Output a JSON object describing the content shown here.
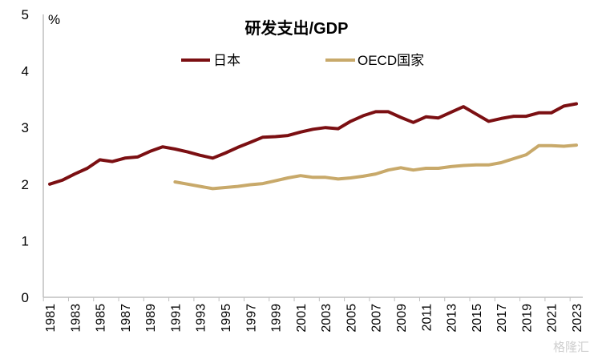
{
  "chart_data": {
    "type": "line",
    "title": "研发支出/GDP",
    "ylabel": "%",
    "xlabel": "",
    "ylim": [
      0,
      5
    ],
    "yticks": [
      "0",
      "1",
      "2",
      "3",
      "4",
      "5"
    ],
    "xlim": [
      1981,
      2023
    ],
    "xticks": [
      "1981",
      "1983",
      "1985",
      "1987",
      "1989",
      "1991",
      "1993",
      "1995",
      "1997",
      "1999",
      "2001",
      "2003",
      "2005",
      "2007",
      "2009",
      "2011",
      "2013",
      "2015",
      "2017",
      "2019",
      "2021",
      "2023"
    ],
    "grid": false,
    "legend_position": "top-center",
    "series": [
      {
        "name": "日本",
        "color": "#7B0F12",
        "x": [
          1981,
          1982,
          1983,
          1984,
          1985,
          1986,
          1987,
          1988,
          1989,
          1990,
          1991,
          1992,
          1993,
          1994,
          1995,
          1996,
          1997,
          1998,
          1999,
          2000,
          2001,
          2002,
          2003,
          2004,
          2005,
          2006,
          2007,
          2008,
          2009,
          2010,
          2011,
          2012,
          2013,
          2014,
          2015,
          2016,
          2017,
          2018,
          2019,
          2020,
          2021,
          2022,
          2023
        ],
        "values": [
          2.0,
          2.07,
          2.18,
          2.28,
          2.43,
          2.4,
          2.46,
          2.48,
          2.58,
          2.66,
          2.62,
          2.57,
          2.51,
          2.46,
          2.55,
          2.65,
          2.74,
          2.83,
          2.84,
          2.86,
          2.92,
          2.97,
          3.0,
          2.98,
          3.11,
          3.21,
          3.28,
          3.28,
          3.18,
          3.09,
          3.19,
          3.17,
          3.27,
          3.37,
          3.24,
          3.11,
          3.16,
          3.2,
          3.2,
          3.26,
          3.26,
          3.38,
          3.42
        ]
      },
      {
        "name": "OECD国家",
        "color": "#C8A96A",
        "x": [
          1991,
          1992,
          1993,
          1994,
          1995,
          1996,
          1997,
          1998,
          1999,
          2000,
          2001,
          2002,
          2003,
          2004,
          2005,
          2006,
          2007,
          2008,
          2009,
          2010,
          2011,
          2012,
          2013,
          2014,
          2015,
          2016,
          2017,
          2018,
          2019,
          2020,
          2021,
          2022,
          2023
        ],
        "values": [
          2.04,
          2.0,
          1.96,
          1.92,
          1.94,
          1.96,
          1.99,
          2.01,
          2.06,
          2.11,
          2.15,
          2.12,
          2.12,
          2.09,
          2.11,
          2.14,
          2.18,
          2.25,
          2.29,
          2.25,
          2.28,
          2.28,
          2.31,
          2.33,
          2.34,
          2.34,
          2.38,
          2.45,
          2.52,
          2.68,
          2.68,
          2.67,
          2.69
        ]
      }
    ]
  },
  "watermark": "格隆汇"
}
